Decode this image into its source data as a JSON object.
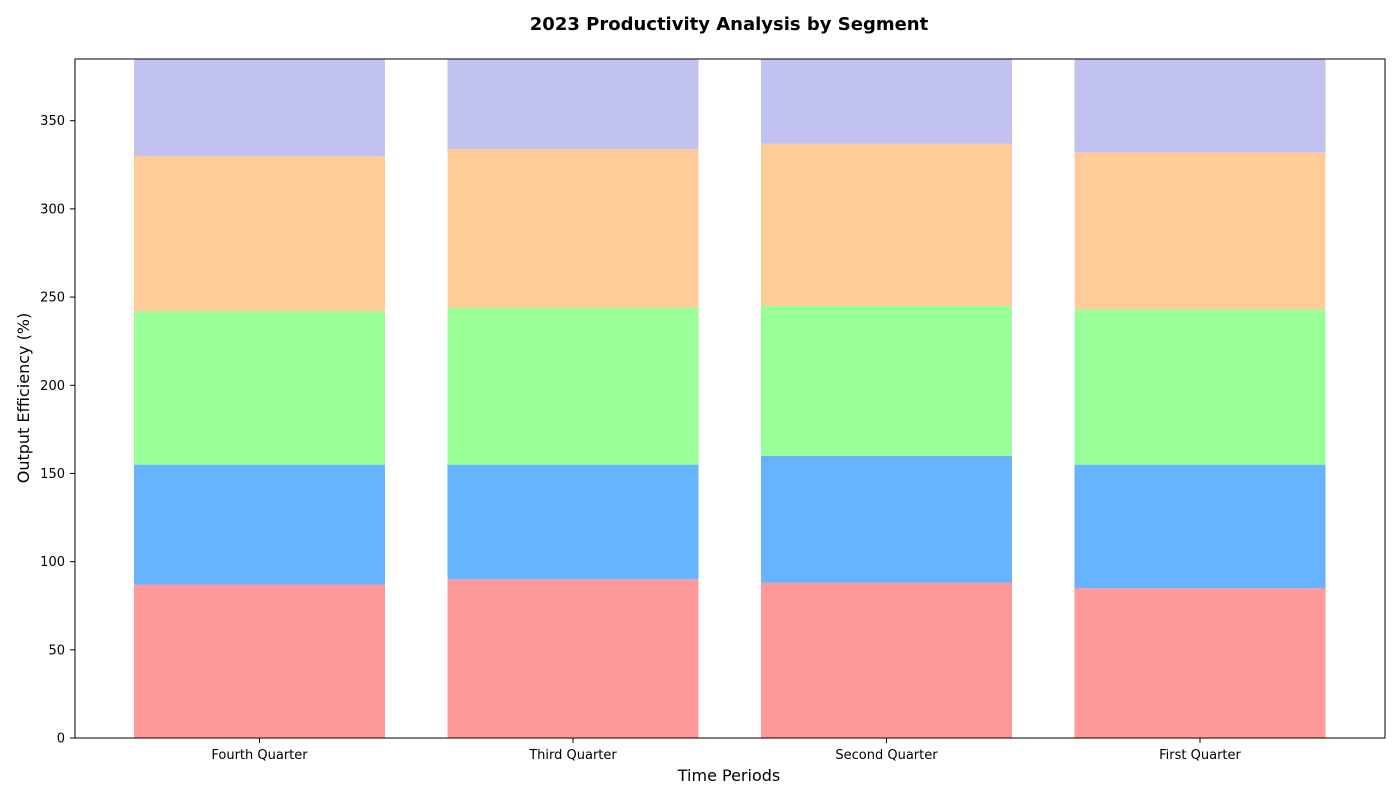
{
  "chart_data": {
    "type": "bar",
    "stacked": true,
    "title": "2023 Productivity Analysis by Segment",
    "xlabel": "Time Periods",
    "ylabel": "Output Efficiency (%)",
    "categories": [
      "Fourth Quarter",
      "Third Quarter",
      "Second Quarter",
      "First Quarter"
    ],
    "ylim": [
      0,
      385
    ],
    "yticks": [
      0,
      50,
      100,
      150,
      200,
      250,
      300,
      350
    ],
    "grid": false,
    "legend": "none",
    "series": [
      {
        "values": [
          87,
          90,
          88,
          85
        ],
        "color": "#ff9999"
      },
      {
        "values": [
          68,
          65,
          72,
          70
        ],
        "color": "#66b3ff"
      },
      {
        "values": [
          87,
          89,
          85,
          88
        ],
        "color": "#99ff99"
      },
      {
        "values": [
          88,
          90,
          92,
          89
        ],
        "color": "#ffcc99"
      },
      {
        "values": [
          70,
          70,
          70,
          70
        ],
        "color": "#c2c2f0"
      }
    ]
  }
}
